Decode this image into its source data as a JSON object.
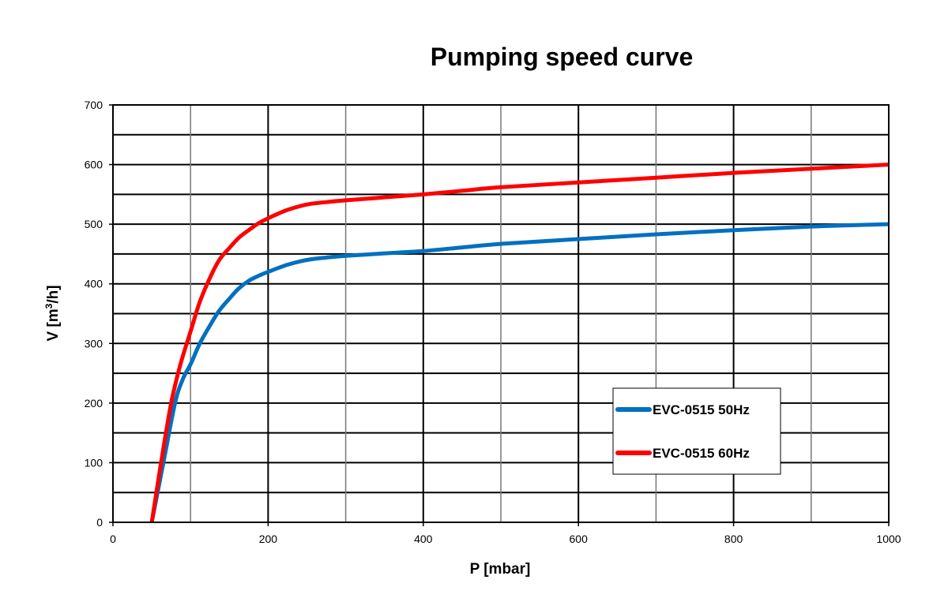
{
  "chart_data": {
    "type": "line",
    "title": "Pumping speed curve",
    "xlabel": "P [mbar]",
    "ylabel_main": "V [m",
    "ylabel_sup": "3",
    "ylabel_tail": "/h]",
    "xlim": [
      0,
      1000
    ],
    "ylim": [
      0,
      700
    ],
    "x_ticks": [
      0,
      200,
      400,
      600,
      800,
      1000
    ],
    "y_ticks": [
      0,
      100,
      200,
      300,
      400,
      500,
      600,
      700
    ],
    "x_minor_grid_step": 100,
    "y_minor_grid_step": 50,
    "grid": true,
    "legend_position": "bottom-right",
    "series": [
      {
        "name": "EVC-0515 50Hz",
        "color": "#0070C0",
        "x": [
          50,
          65,
          80,
          90,
          100,
          112,
          125,
          137,
          150,
          162,
          175,
          187,
          200,
          225,
          250,
          275,
          300,
          350,
          400,
          450,
          500,
          600,
          700,
          800,
          900,
          1000
        ],
        "y": [
          0,
          100,
          200,
          240,
          265,
          300,
          330,
          355,
          375,
          392,
          405,
          413,
          420,
          432,
          440,
          444,
          447,
          451,
          455,
          461,
          467,
          475,
          483,
          490,
          496,
          500
        ]
      },
      {
        "name": "EVC-0515 60Hz",
        "color": "#FF0000",
        "x": [
          50,
          62,
          75,
          87,
          100,
          112,
          125,
          137,
          150,
          162,
          175,
          187,
          200,
          225,
          250,
          275,
          300,
          350,
          400,
          450,
          500,
          600,
          700,
          800,
          900,
          1000
        ],
        "y": [
          0,
          100,
          200,
          265,
          320,
          370,
          410,
          440,
          460,
          477,
          490,
          501,
          510,
          524,
          533,
          537,
          540,
          545,
          550,
          556,
          562,
          570,
          578,
          586,
          593,
          600
        ]
      }
    ]
  }
}
